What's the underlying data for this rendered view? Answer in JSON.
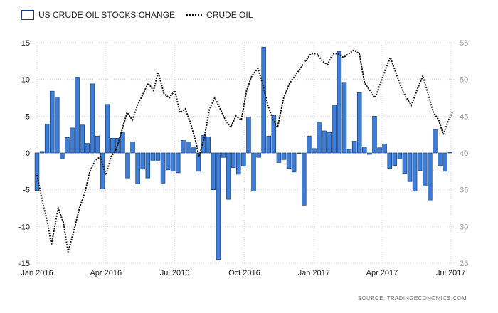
{
  "chart_data": {
    "type": "bar",
    "series": [
      {
        "name": "US CRUDE OIL STOCKS CHANGE",
        "type": "bar",
        "axis": "left",
        "color": "#3d7fd6",
        "values": [
          -5.1,
          0.2,
          3.9,
          8.4,
          7.6,
          -0.8,
          2.1,
          3.4,
          10.3,
          3.8,
          1.3,
          9.4,
          2.3,
          -4.9,
          6.6,
          2.0,
          2.0,
          2.8,
          -3.4,
          1.5,
          -4.2,
          -2.2,
          -3.4,
          -1.0,
          -1.0,
          -4.1,
          -2.3,
          -2.5,
          -2.7,
          1.7,
          1.5,
          0.8,
          -2.5,
          2.4,
          2.2,
          -5.0,
          -14.5,
          -0.6,
          -6.3,
          -2.0,
          -2.9,
          -1.8,
          4.9,
          -5.2,
          -0.6,
          14.4,
          2.3,
          5.1,
          -1.3,
          -0.9,
          -2.1,
          -2.6,
          0.0,
          -7.1,
          2.3,
          0.6,
          4.1,
          3.0,
          2.8,
          6.5,
          13.8,
          9.6,
          0.5,
          1.6,
          8.2,
          0.8,
          -0.2,
          5.0,
          0.7,
          1.2,
          -2.1,
          -1.7,
          -0.8,
          -2.8,
          -3.9,
          -5.2,
          -2.4,
          -4.5,
          -6.4,
          3.2,
          -1.7,
          -2.5,
          0.1
        ]
      },
      {
        "name": "CRUDE OIL",
        "type": "line",
        "axis": "right",
        "color": "#111111",
        "points": [
          [
            "2016-01-01",
            37.0
          ],
          [
            "2016-01-08",
            33.5
          ],
          [
            "2016-01-15",
            30.5
          ],
          [
            "2016-01-20",
            27.5
          ],
          [
            "2016-01-29",
            32.5
          ],
          [
            "2016-02-05",
            30.5
          ],
          [
            "2016-02-11",
            26.5
          ],
          [
            "2016-02-19",
            29.5
          ],
          [
            "2016-02-26",
            32.5
          ],
          [
            "2016-03-04",
            34.5
          ],
          [
            "2016-03-11",
            37.5
          ],
          [
            "2016-03-18",
            39.0
          ],
          [
            "2016-03-25",
            39.5
          ],
          [
            "2016-04-01",
            37.0
          ],
          [
            "2016-04-08",
            39.5
          ],
          [
            "2016-04-15",
            40.5
          ],
          [
            "2016-04-22",
            43.0
          ],
          [
            "2016-04-29",
            45.5
          ],
          [
            "2016-05-06",
            44.5
          ],
          [
            "2016-05-13",
            46.5
          ],
          [
            "2016-05-20",
            48.0
          ],
          [
            "2016-05-27",
            49.5
          ],
          [
            "2016-06-03",
            48.5
          ],
          [
            "2016-06-09",
            51.0
          ],
          [
            "2016-06-17",
            48.0
          ],
          [
            "2016-06-24",
            47.5
          ],
          [
            "2016-07-01",
            48.5
          ],
          [
            "2016-07-08",
            45.5
          ],
          [
            "2016-07-15",
            46.0
          ],
          [
            "2016-07-22",
            44.0
          ],
          [
            "2016-07-29",
            41.5
          ],
          [
            "2016-08-02",
            39.5
          ],
          [
            "2016-08-09",
            42.0
          ],
          [
            "2016-08-16",
            46.0
          ],
          [
            "2016-08-23",
            47.5
          ],
          [
            "2016-08-30",
            46.0
          ],
          [
            "2016-09-06",
            44.5
          ],
          [
            "2016-09-13",
            43.5
          ],
          [
            "2016-09-20",
            45.0
          ],
          [
            "2016-09-27",
            44.5
          ],
          [
            "2016-10-04",
            48.5
          ],
          [
            "2016-10-11",
            50.5
          ],
          [
            "2016-10-19",
            51.5
          ],
          [
            "2016-10-25",
            49.5
          ],
          [
            "2016-11-01",
            46.5
          ],
          [
            "2016-11-08",
            44.5
          ],
          [
            "2016-11-14",
            43.5
          ],
          [
            "2016-11-22",
            47.5
          ],
          [
            "2016-11-30",
            49.5
          ],
          [
            "2016-12-07",
            50.5
          ],
          [
            "2016-12-14",
            51.5
          ],
          [
            "2016-12-21",
            52.5
          ],
          [
            "2016-12-28",
            53.5
          ],
          [
            "2017-01-05",
            53.5
          ],
          [
            "2017-01-12",
            52.5
          ],
          [
            "2017-01-19",
            52.0
          ],
          [
            "2017-01-26",
            53.5
          ],
          [
            "2017-02-02",
            53.5
          ],
          [
            "2017-02-09",
            53.0
          ],
          [
            "2017-02-16",
            53.5
          ],
          [
            "2017-02-23",
            54.0
          ],
          [
            "2017-03-02",
            53.5
          ],
          [
            "2017-03-09",
            49.5
          ],
          [
            "2017-03-16",
            48.5
          ],
          [
            "2017-03-23",
            47.5
          ],
          [
            "2017-03-30",
            49.5
          ],
          [
            "2017-04-06",
            51.5
          ],
          [
            "2017-04-12",
            53.0
          ],
          [
            "2017-04-19",
            51.0
          ],
          [
            "2017-04-26",
            49.0
          ],
          [
            "2017-05-03",
            47.5
          ],
          [
            "2017-05-10",
            46.5
          ],
          [
            "2017-05-17",
            48.5
          ],
          [
            "2017-05-25",
            50.5
          ],
          [
            "2017-06-01",
            48.0
          ],
          [
            "2017-06-08",
            45.5
          ],
          [
            "2017-06-15",
            44.5
          ],
          [
            "2017-06-21",
            42.5
          ],
          [
            "2017-06-28",
            44.5
          ],
          [
            "2017-07-03",
            45.5
          ]
        ]
      }
    ],
    "x_range": [
      "2016-01-01",
      "2017-07-05"
    ],
    "bar_x_range": [
      "2016-01-01",
      "2017-06-30"
    ],
    "left_axis": {
      "ylim": [
        -15,
        15
      ],
      "ticks": [
        "15",
        "10",
        "5",
        "0",
        "-5",
        "-10",
        "-15"
      ]
    },
    "right_axis": {
      "ylim": [
        25,
        55
      ],
      "ticks": [
        "55",
        "50",
        "45",
        "40",
        "35",
        "30",
        "25"
      ]
    },
    "x_ticks": [
      {
        "label": "Jan 2016",
        "date": "2016-01-01"
      },
      {
        "label": "Apr 2016",
        "date": "2016-04-01"
      },
      {
        "label": "Jul 2016",
        "date": "2016-07-01"
      },
      {
        "label": "Oct 2016",
        "date": "2016-10-01"
      },
      {
        "label": "Jan 2017",
        "date": "2017-01-01"
      },
      {
        "label": "Apr 2017",
        "date": "2017-04-01"
      },
      {
        "label": "Jul 2017",
        "date": "2017-07-01"
      }
    ],
    "grid": true,
    "legend_position": "top-left",
    "source": "SOURCE: TRADINGECONOMICS.COM",
    "colors": {
      "bar_fill": "#3d7fd6",
      "bar_stroke": "#1b3d7a",
      "line": "#111111",
      "grid": "#d6d6d6",
      "left_ticks": "#222222",
      "right_ticks": "#9a9a9a"
    }
  }
}
